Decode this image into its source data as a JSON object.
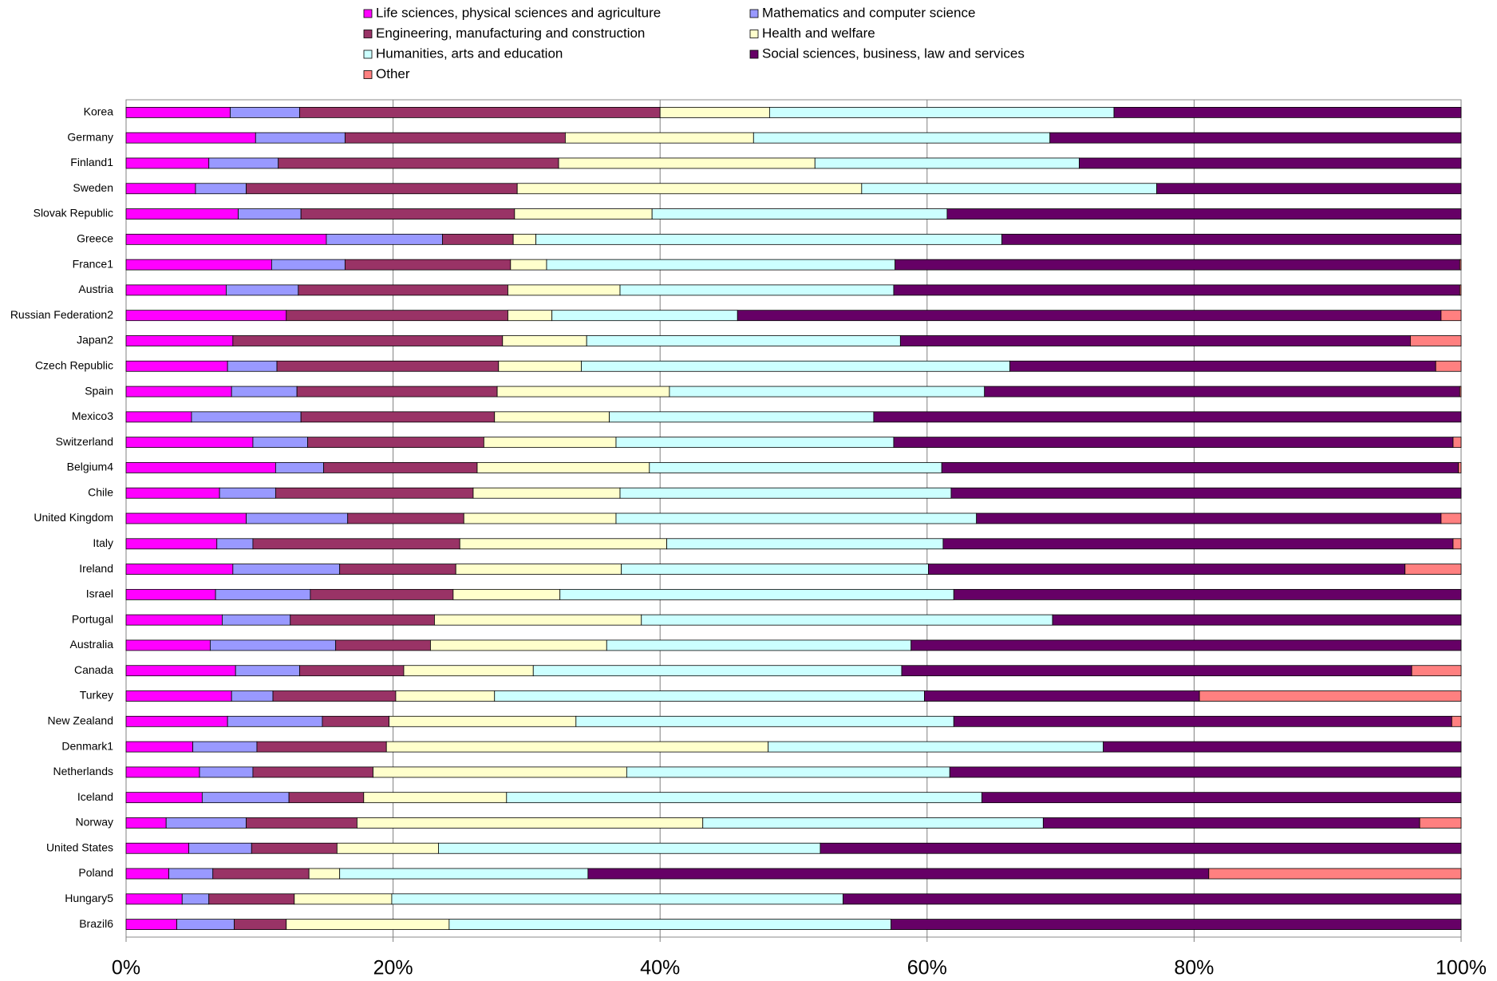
{
  "chart_data": {
    "type": "stacked_barh",
    "categories": [
      "Korea",
      "Germany",
      "Finland1",
      "Sweden",
      "Slovak Republic",
      "Greece",
      "France1",
      "Austria",
      "Russian Federation2",
      "Japan2",
      "Czech Republic",
      "Spain",
      "Mexico3",
      "Switzerland",
      "Belgium4",
      "Chile",
      "United Kingdom",
      "Italy",
      "Ireland",
      "Israel",
      "Portugal",
      "Australia",
      "Canada",
      "Turkey",
      "New Zealand",
      "Denmark1",
      "Netherlands",
      "Iceland",
      "Norway",
      "United States",
      "Poland",
      "Hungary5",
      "Brazil6"
    ],
    "series": [
      {
        "name": "Life sciences, physical sciences and agriculture",
        "color": "#ff00ff",
        "values": [
          7.8,
          9.7,
          6.2,
          5.2,
          8.4,
          15.0,
          10.9,
          7.5,
          12.0,
          8.0,
          7.6,
          7.9,
          4.9,
          9.5,
          11.2,
          7.0,
          9.0,
          6.8,
          8.0,
          6.7,
          7.2,
          6.3,
          8.2,
          7.9,
          7.6,
          5.0,
          5.5,
          5.7,
          3.0,
          4.7,
          3.2,
          4.2,
          3.8
        ]
      },
      {
        "name": "Mathematics and computer science",
        "color": "#9999ff",
        "values": [
          5.2,
          6.7,
          5.2,
          3.8,
          4.7,
          8.7,
          5.5,
          5.4,
          0,
          0,
          3.7,
          4.9,
          8.2,
          4.1,
          3.6,
          4.2,
          7.6,
          2.7,
          8.0,
          7.1,
          5.1,
          9.4,
          4.8,
          3.1,
          7.1,
          4.8,
          4.0,
          6.5,
          6.0,
          4.7,
          3.3,
          2.0,
          4.3
        ]
      },
      {
        "name": "Engineering, manufacturing and construction",
        "color": "#993366",
        "values": [
          27.0,
          16.5,
          21.0,
          20.3,
          16.0,
          5.3,
          12.4,
          15.7,
          16.6,
          20.2,
          16.6,
          15.0,
          14.5,
          13.2,
          11.5,
          14.8,
          8.7,
          15.5,
          8.7,
          10.7,
          10.8,
          7.1,
          7.8,
          9.2,
          5.0,
          9.7,
          9.0,
          5.6,
          8.3,
          6.4,
          7.2,
          6.4,
          3.9
        ]
      },
      {
        "name": "Health and welfare",
        "color": "#ffffcc",
        "values": [
          8.2,
          14.1,
          19.2,
          25.8,
          10.3,
          1.7,
          2.7,
          8.4,
          3.3,
          6.3,
          6.2,
          12.9,
          8.6,
          9.9,
          12.9,
          11.0,
          11.4,
          15.5,
          12.4,
          8.0,
          15.5,
          13.2,
          9.7,
          7.4,
          14.0,
          28.6,
          19.0,
          10.7,
          25.9,
          7.6,
          2.3,
          7.3,
          12.2
        ]
      },
      {
        "name": "Humanities, arts and education",
        "color": "#ccffff",
        "values": [
          25.8,
          22.2,
          19.8,
          22.1,
          22.1,
          34.9,
          26.1,
          20.5,
          13.9,
          23.5,
          32.1,
          23.6,
          19.8,
          20.8,
          21.9,
          24.8,
          27.0,
          20.7,
          23.0,
          29.5,
          30.8,
          22.8,
          27.6,
          32.2,
          28.3,
          25.1,
          24.2,
          35.6,
          25.5,
          28.6,
          18.6,
          33.8,
          33.1
        ]
      },
      {
        "name": "Social sciences, business, law and services",
        "color": "#660066",
        "values": [
          26.0,
          30.8,
          28.6,
          22.8,
          38.5,
          34.4,
          42.3,
          42.4,
          52.7,
          38.2,
          31.9,
          35.6,
          44.0,
          41.9,
          38.7,
          38.2,
          34.8,
          38.2,
          35.7,
          38.0,
          30.6,
          41.2,
          38.2,
          20.6,
          37.3,
          26.8,
          38.3,
          35.9,
          28.2,
          48.0,
          46.5,
          46.3,
          42.7
        ]
      },
      {
        "name": "Other",
        "color": "#ff8080",
        "values": [
          0,
          0,
          0,
          0,
          0,
          0,
          0.1,
          0.1,
          1.5,
          3.8,
          1.9,
          0.1,
          0,
          0.6,
          0.2,
          0,
          1.5,
          0.6,
          4.2,
          0,
          0,
          0,
          3.7,
          19.6,
          0.7,
          0,
          0,
          0,
          3.1,
          0,
          18.9,
          0,
          0
        ]
      }
    ],
    "xlim": [
      0,
      100
    ],
    "xticks": [
      {
        "value": 0,
        "label": "0%"
      },
      {
        "value": 20,
        "label": "20%"
      },
      {
        "value": 40,
        "label": "40%"
      },
      {
        "value": 60,
        "label": "60%"
      },
      {
        "value": 80,
        "label": "80%"
      },
      {
        "value": 100,
        "label": "100%"
      }
    ],
    "grid": true
  }
}
